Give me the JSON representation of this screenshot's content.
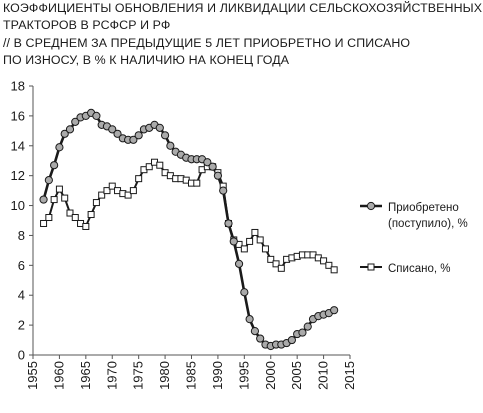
{
  "title": {
    "line1": "КОЭФФИЦИЕНТЫ ОБНОВЛЕНИЯ И ЛИКВИДАЦИИ СЕЛЬСКОХОЗЯЙСТВЕННЫХ",
    "line2": "ТРАКТОРОВ В  РСФСР И  РФ",
    "line3": "//  В СРЕДНЕМ ЗА ПРЕДЫДУЩИЕ  5 ЛЕТ  ПРИОБРЕТНО И СПИСАНО",
    "line4": "ПО ИЗНОСУ, В  % К НАЛИЧИЮ НА КОНЕЦ ГОДА"
  },
  "chart_data": {
    "type": "line",
    "xlim": [
      1955,
      2015
    ],
    "ylim": [
      0,
      18
    ],
    "x_ticks": [
      1955,
      1960,
      1965,
      1970,
      1975,
      1980,
      1985,
      1990,
      1995,
      2000,
      2005,
      2010,
      2015
    ],
    "y_ticks": [
      0,
      2,
      4,
      6,
      8,
      10,
      12,
      14,
      16,
      18
    ],
    "grid": false,
    "legend_position": "right",
    "series": [
      {
        "name": "Приобретено (поступило), %",
        "legend_lines": [
          "Приобретено",
          "(поступило), %"
        ],
        "marker": "circle-filled",
        "color": "#1a1a1a",
        "marker_fill": "#aaaaaa",
        "x": [
          1957,
          1958,
          1959,
          1960,
          1961,
          1962,
          1963,
          1964,
          1965,
          1966,
          1967,
          1968,
          1969,
          1970,
          1971,
          1972,
          1973,
          1974,
          1975,
          1976,
          1977,
          1978,
          1979,
          1980,
          1981,
          1982,
          1983,
          1984,
          1985,
          1986,
          1987,
          1988,
          1989,
          1990,
          1991,
          1992,
          1993,
          1994,
          1995,
          1996,
          1997,
          1998,
          1999,
          2000,
          2001,
          2002,
          2003,
          2004,
          2005,
          2006,
          2007,
          2008,
          2009,
          2010,
          2011,
          2012
        ],
        "values": [
          10.4,
          11.7,
          12.7,
          13.9,
          14.8,
          15.1,
          15.6,
          15.9,
          16.0,
          16.2,
          16.0,
          15.4,
          15.3,
          15.1,
          14.8,
          14.5,
          14.4,
          14.4,
          14.7,
          15.1,
          15.2,
          15.4,
          15.2,
          14.7,
          14.0,
          13.6,
          13.4,
          13.2,
          13.1,
          13.1,
          13.1,
          12.9,
          12.6,
          12.0,
          11.0,
          8.8,
          7.6,
          6.1,
          4.2,
          2.4,
          1.6,
          1.1,
          0.7,
          0.6,
          0.7,
          0.7,
          0.8,
          1.0,
          1.4,
          1.5,
          1.9,
          2.4,
          2.6,
          2.7,
          2.8,
          3.0
        ]
      },
      {
        "name": "Списано, %",
        "legend_lines": [
          "Списано, %"
        ],
        "marker": "square-open",
        "color": "#1a1a1a",
        "marker_fill": "#ffffff",
        "x": [
          1957,
          1958,
          1959,
          1960,
          1961,
          1962,
          1963,
          1964,
          1965,
          1966,
          1967,
          1968,
          1969,
          1970,
          1971,
          1972,
          1973,
          1974,
          1975,
          1976,
          1977,
          1978,
          1979,
          1980,
          1981,
          1982,
          1983,
          1984,
          1985,
          1986,
          1987,
          1988,
          1989,
          1990,
          1991,
          1992,
          1993,
          1994,
          1995,
          1996,
          1997,
          1998,
          1999,
          2000,
          2001,
          2002,
          2003,
          2004,
          2005,
          2006,
          2007,
          2008,
          2009,
          2010,
          2011,
          2012
        ],
        "values": [
          8.8,
          9.2,
          10.4,
          11.1,
          10.5,
          9.5,
          9.2,
          8.8,
          8.6,
          9.4,
          10.2,
          10.7,
          11.0,
          11.3,
          11.0,
          10.8,
          10.7,
          11.0,
          11.8,
          12.4,
          12.6,
          12.9,
          12.7,
          12.2,
          12.0,
          11.8,
          11.8,
          11.7,
          11.5,
          11.5,
          12.4,
          12.6,
          12.6,
          12.2,
          11.3,
          8.8,
          7.7,
          7.4,
          7.1,
          7.6,
          8.2,
          7.7,
          7.1,
          6.4,
          6.1,
          5.8,
          6.4,
          6.5,
          6.6,
          6.7,
          6.7,
          6.7,
          6.5,
          6.3,
          6.0,
          5.7
        ]
      }
    ]
  }
}
